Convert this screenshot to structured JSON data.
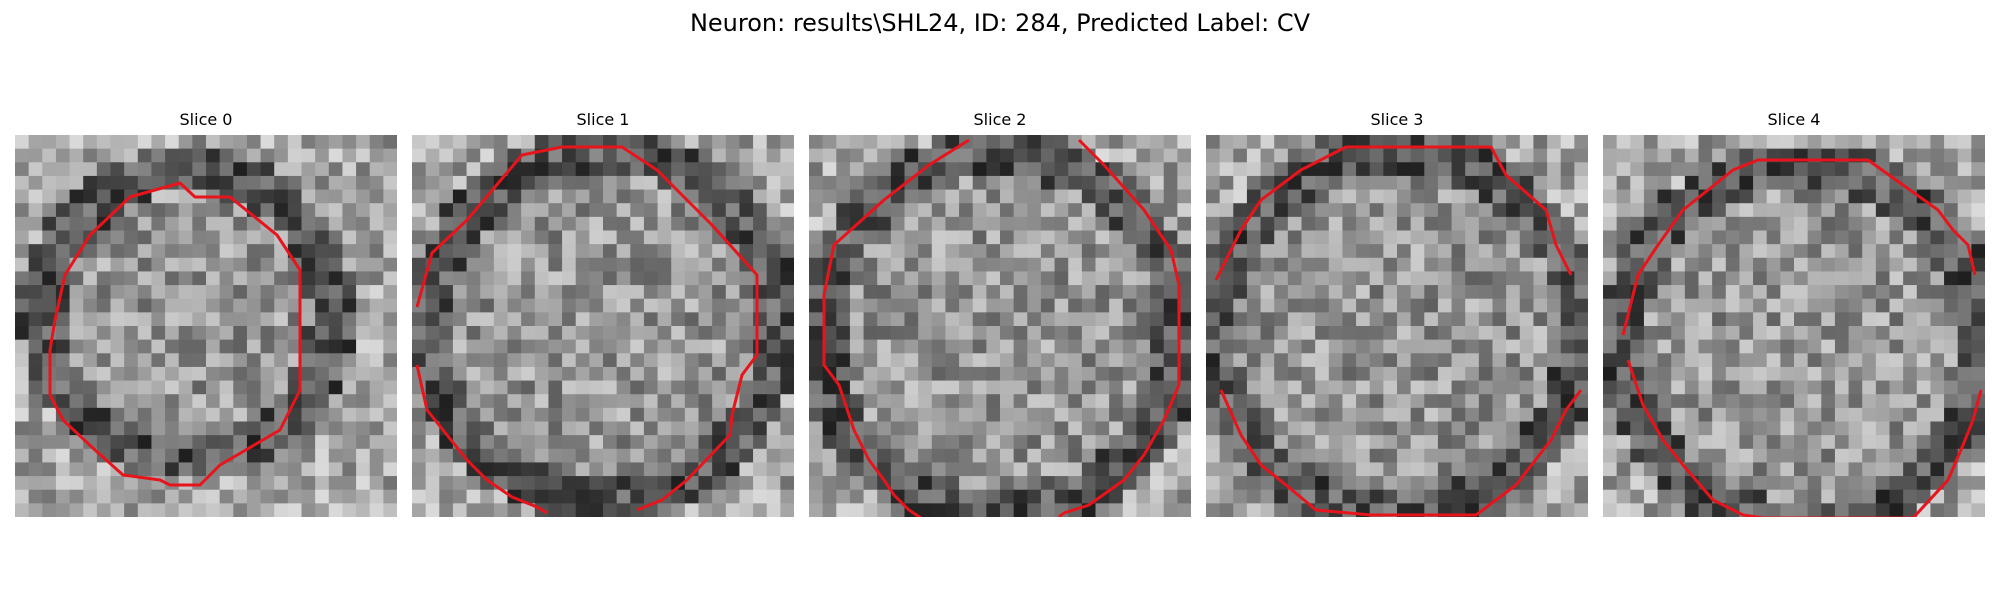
{
  "figure": {
    "title": "Neuron: results\\SHL24, ID: 284, Predicted Label: CV"
  },
  "colors": {
    "contour": "#e8141c",
    "background": "#ffffff",
    "text": "#000000"
  },
  "panels": [
    {
      "title": "Slice 0"
    },
    {
      "title": "Slice 1"
    },
    {
      "title": "Slice 2"
    },
    {
      "title": "Slice 3"
    },
    {
      "title": "Slice 4"
    }
  ]
}
